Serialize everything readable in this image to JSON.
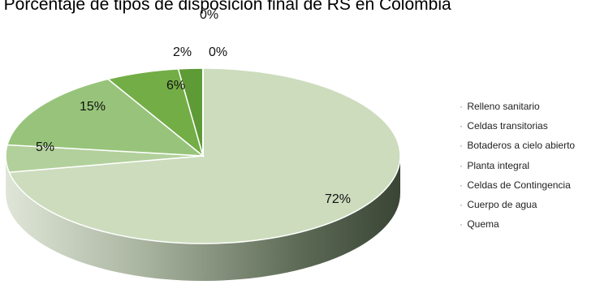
{
  "chart_data": {
    "type": "pie",
    "title": "…. Porcentaje de tipos de disposición final de RS en Colombia",
    "labels": [
      "Relleno sanitario",
      "Celdas transitorias",
      "Botaderos a cielo abierto",
      "Planta integral",
      "Celdas de Contingencia",
      "Cuerpo de agua",
      "Quema"
    ],
    "values": [
      72,
      5,
      15,
      6,
      2,
      0,
      0
    ],
    "data_labels": [
      "72%",
      "5%",
      "15%",
      "6%",
      "2%",
      "0%",
      "0%"
    ],
    "colors": [
      "#ccdcbd",
      "#b2d09b",
      "#97c47a",
      "#73ad46",
      "#5e9a35",
      "#cfd8cc",
      "#cfd8cc"
    ],
    "legend_position": "right",
    "style": "3d-pie"
  }
}
